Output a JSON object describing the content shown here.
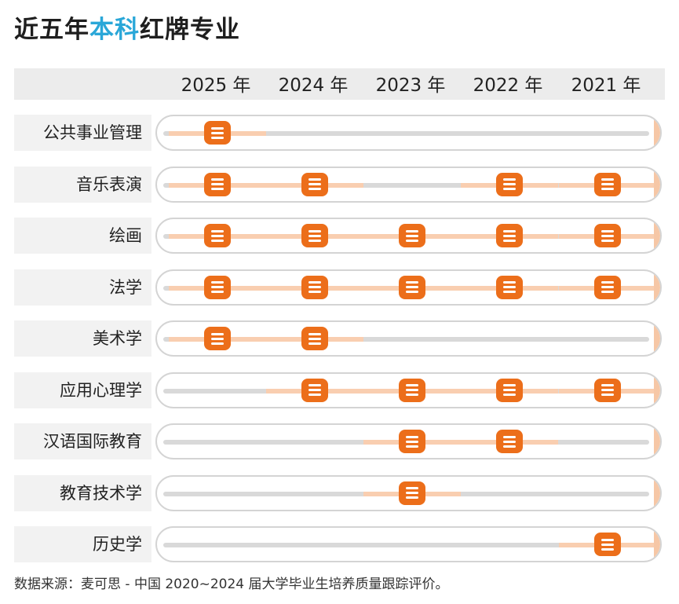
{
  "title": {
    "part1": "近五年",
    "highlight": "本科",
    "part2": "红牌专业"
  },
  "chart_data": {
    "type": "table",
    "columns": [
      "2025 年",
      "2024 年",
      "2023 年",
      "2022 年",
      "2021 年"
    ],
    "rows": [
      {
        "label": "公共事业管理",
        "flags": [
          true,
          false,
          false,
          false,
          false
        ]
      },
      {
        "label": "音乐表演",
        "flags": [
          true,
          true,
          false,
          true,
          true
        ]
      },
      {
        "label": "绘画",
        "flags": [
          true,
          true,
          true,
          true,
          true
        ]
      },
      {
        "label": "法学",
        "flags": [
          true,
          true,
          true,
          true,
          true
        ]
      },
      {
        "label": "美术学",
        "flags": [
          true,
          true,
          false,
          false,
          false
        ]
      },
      {
        "label": "应用心理学",
        "flags": [
          false,
          true,
          true,
          true,
          true
        ]
      },
      {
        "label": "汉语国际教育",
        "flags": [
          false,
          false,
          true,
          true,
          false
        ]
      },
      {
        "label": "教育技术学",
        "flags": [
          false,
          false,
          true,
          false,
          false
        ]
      },
      {
        "label": "历史学",
        "flags": [
          false,
          false,
          false,
          false,
          true
        ]
      }
    ],
    "marker_icon": "list-badge-icon",
    "colors": {
      "highlight": "#2aa7d8",
      "badge": "#ec6e1a",
      "active_segment": "#f9ceb0",
      "track": "#d9d9d9"
    }
  },
  "source": "数据来源：麦可思 - 中国 2020~2024 届大学毕业生培养质量跟踪评价。"
}
